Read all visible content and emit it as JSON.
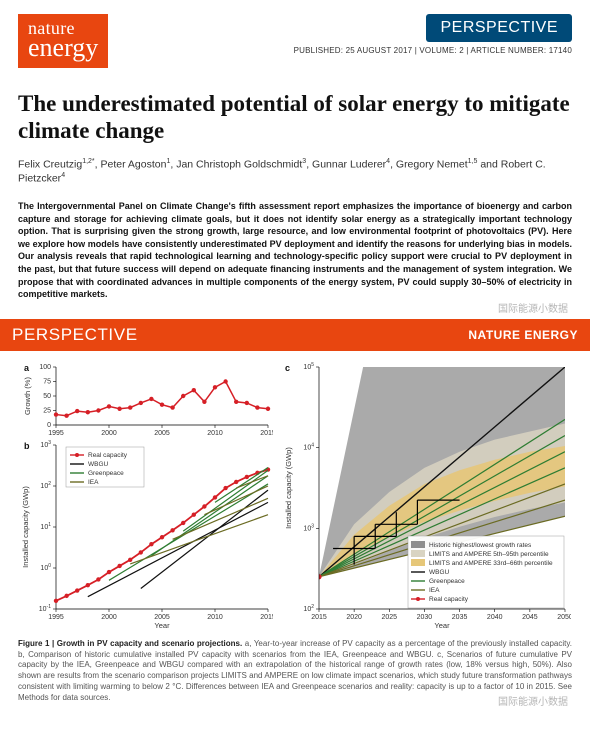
{
  "masthead": {
    "logo_line1": "nature",
    "logo_line2": "energy",
    "perspective_label": "PERSPECTIVE",
    "pubinfo": "PUBLISHED: 25 AUGUST 2017 | VOLUME: 2 | ARTICLE NUMBER: 17140"
  },
  "title": "The underestimated potential of solar energy to mitigate climate change",
  "authors_html": "Felix Creutzig<sup>1,2*</sup>, Peter Agoston<sup>1</sup>, Jan Christoph Goldschmidt<sup>3</sup>, Gunnar Luderer<sup>4</sup>, Gregory Nemet<sup>1,5</sup> and Robert C. Pietzcker<sup>4</sup>",
  "abstract": "The Intergovernmental Panel on Climate Change's fifth assessment report emphasizes the importance of bioenergy and carbon capture and storage for achieving climate goals, but it does not identify solar energy as a strategically important technology option. That is surprising given the strong growth, large resource, and low environmental footprint of photovoltaics (PV). Here we explore how models have consistently underestimated PV deployment and identify the reasons for underlying bias in models. Our analysis reveals that rapid technological learning and technology-specific policy support were crucial to PV deployment in the past, but that future success will depend on adequate financing instruments and the management of system integration. We propose that with coordinated advances in multiple components of the energy system, PV could supply 30–50% of electricity in competitive markets.",
  "band": {
    "left": "PERSPECTIVE",
    "right": "NATURE ENERGY"
  },
  "colors": {
    "brand_orange": "#e84610",
    "brand_blue": "#004a78",
    "real_red": "#d61f26",
    "wbgu_black": "#111111",
    "greenpeace": "#2e7d32",
    "iea_olive": "#6b6b23",
    "band_fill_inner": "#e6c779",
    "band_fill_outer": "#d9d4c2",
    "grey_wedge": "#8e8e8e"
  },
  "panel_a": {
    "label": "a",
    "type": "line",
    "xlabel": "",
    "ylabel": "Growth (%)",
    "xlim": [
      1995,
      2015
    ],
    "xticks": [
      1995,
      2000,
      2005,
      2010,
      2015
    ],
    "ylim": [
      0,
      100
    ],
    "yticks": [
      0,
      25,
      50,
      75,
      100
    ],
    "series": [
      {
        "name": "growth",
        "color": "#d61f26",
        "marker": "circle",
        "lw": 1.5,
        "x": [
          1995,
          1996,
          1997,
          1998,
          1999,
          2000,
          2001,
          2002,
          2003,
          2004,
          2005,
          2006,
          2007,
          2008,
          2009,
          2010,
          2011,
          2012,
          2013,
          2014,
          2015
        ],
        "y": [
          18,
          16,
          24,
          22,
          25,
          32,
          28,
          30,
          38,
          45,
          35,
          30,
          50,
          60,
          40,
          65,
          75,
          40,
          38,
          30,
          28
        ]
      }
    ]
  },
  "panel_b": {
    "label": "b",
    "type": "semilogy",
    "xlabel": "Year",
    "ylabel": "Installed capacity (GWp)",
    "xlim": [
      1995,
      2015
    ],
    "xticks": [
      1995,
      2000,
      2005,
      2010,
      2015
    ],
    "ylim_log": [
      -1,
      3
    ],
    "ytick_exp": [
      -1,
      0,
      1,
      2,
      3
    ],
    "legend": [
      {
        "name": "Real capacity",
        "color": "#d61f26",
        "marker": "circle"
      },
      {
        "name": "WBGU",
        "color": "#111111"
      },
      {
        "name": "Greenpeace",
        "color": "#2e7d32"
      },
      {
        "name": "IEA",
        "color": "#6b6b23"
      }
    ],
    "series": [
      {
        "name": "Real capacity",
        "color": "#d61f26",
        "lw": 1.8,
        "marker": "circle",
        "x": [
          1995,
          1996,
          1997,
          1998,
          1999,
          2000,
          2001,
          2002,
          2003,
          2004,
          2005,
          2006,
          2007,
          2008,
          2009,
          2010,
          2011,
          2012,
          2013,
          2014,
          2015
        ],
        "ylog": [
          -0.8,
          -0.68,
          -0.55,
          -0.42,
          -0.28,
          -0.1,
          0.05,
          0.2,
          0.38,
          0.58,
          0.75,
          0.92,
          1.1,
          1.3,
          1.5,
          1.72,
          1.95,
          2.1,
          2.22,
          2.32,
          2.4
        ]
      },
      {
        "name": "WBGU 1",
        "color": "#111111",
        "lw": 1.2,
        "x": [
          2003,
          2015
        ],
        "ylog": [
          -0.5,
          1.9
        ]
      },
      {
        "name": "WBGU 2",
        "color": "#111111",
        "lw": 1.2,
        "x": [
          1998,
          2015
        ],
        "ylog": [
          -0.7,
          1.6
        ]
      },
      {
        "name": "GP 1",
        "color": "#2e7d32",
        "lw": 1.2,
        "x": [
          2000,
          2015
        ],
        "ylog": [
          -0.3,
          2.05
        ]
      },
      {
        "name": "GP 2",
        "color": "#2e7d32",
        "lw": 1.2,
        "x": [
          2004,
          2015
        ],
        "ylog": [
          0.3,
          2.25
        ]
      },
      {
        "name": "GP 3",
        "color": "#2e7d32",
        "lw": 1.2,
        "x": [
          2007,
          2015
        ],
        "ylog": [
          0.9,
          2.38
        ]
      },
      {
        "name": "GP 4",
        "color": "#2e7d32",
        "lw": 1.2,
        "x": [
          2010,
          2015
        ],
        "ylog": [
          1.6,
          2.45
        ]
      },
      {
        "name": "IEA 1",
        "color": "#6b6b23",
        "lw": 1.2,
        "x": [
          2002,
          2015
        ],
        "ylog": [
          0.1,
          1.3
        ]
      },
      {
        "name": "IEA 2",
        "color": "#6b6b23",
        "lw": 1.2,
        "x": [
          2006,
          2015
        ],
        "ylog": [
          0.7,
          1.7
        ]
      },
      {
        "name": "IEA 3",
        "color": "#6b6b23",
        "lw": 1.2,
        "x": [
          2009,
          2015
        ],
        "ylog": [
          1.3,
          2.0
        ]
      },
      {
        "name": "IEA 4",
        "color": "#6b6b23",
        "lw": 1.2,
        "x": [
          2012,
          2015
        ],
        "ylog": [
          1.95,
          2.25
        ]
      }
    ]
  },
  "panel_c": {
    "label": "c",
    "type": "semilogy",
    "xlabel": "Year",
    "ylabel": "Installed capacity (GWp)",
    "xlim": [
      2015,
      2050
    ],
    "xticks": [
      2015,
      2020,
      2025,
      2030,
      2035,
      2040,
      2045,
      2050
    ],
    "ylim_log": [
      2,
      5
    ],
    "ytick_exp": [
      2,
      3,
      4,
      5
    ],
    "legend": [
      {
        "name": "Historic highest/lowest growth rates",
        "swatch": "#8e8e8e"
      },
      {
        "name": "LIMITS and AMPERE 5th–95th percentile",
        "swatch": "#d9d4c2"
      },
      {
        "name": "LIMITS and AMPERE 33rd–66th percentile",
        "swatch": "#e6c779"
      },
      {
        "name": "WBGU",
        "color": "#111111"
      },
      {
        "name": "Greenpeace",
        "color": "#2e7d32"
      },
      {
        "name": "IEA",
        "color": "#6b6b23"
      },
      {
        "name": "Real capacity",
        "color": "#d61f26",
        "marker": "circle"
      }
    ],
    "grey_wedge": {
      "x": [
        2015,
        2022,
        2050,
        2050
      ],
      "ylog": [
        2.4,
        5.3,
        5.3,
        3.15
      ]
    },
    "band_outer": {
      "top": {
        "x": [
          2015,
          2020,
          2025,
          2030,
          2035,
          2040,
          2045,
          2050
        ],
        "ylog": [
          2.4,
          3.05,
          3.45,
          3.75,
          3.95,
          4.1,
          4.2,
          4.3
        ]
      },
      "bot": {
        "x": [
          2015,
          2020,
          2025,
          2030,
          2035,
          2040,
          2045,
          2050
        ],
        "ylog": [
          2.4,
          2.55,
          2.72,
          2.88,
          3.02,
          3.14,
          3.24,
          3.32
        ]
      }
    },
    "band_inner": {
      "top": {
        "x": [
          2015,
          2020,
          2025,
          2030,
          2035,
          2040,
          2045,
          2050
        ],
        "ylog": [
          2.4,
          2.92,
          3.28,
          3.55,
          3.72,
          3.85,
          3.95,
          4.02
        ]
      },
      "bot": {
        "x": [
          2015,
          2020,
          2025,
          2030,
          2035,
          2040,
          2045,
          2050
        ],
        "ylog": [
          2.4,
          2.68,
          2.9,
          3.08,
          3.22,
          3.34,
          3.44,
          3.52
        ]
      }
    },
    "series_lines": [
      {
        "name": "WBGU",
        "color": "#111111",
        "lw": 1.4,
        "dash": "0",
        "x": [
          2015,
          2050
        ],
        "ylog": [
          2.4,
          5.0
        ]
      },
      {
        "name": "GP a",
        "color": "#2e7d32",
        "lw": 1.2,
        "x": [
          2015,
          2050
        ],
        "ylog": [
          2.4,
          4.35
        ]
      },
      {
        "name": "GP b",
        "color": "#2e7d32",
        "lw": 1.2,
        "x": [
          2015,
          2050
        ],
        "ylog": [
          2.4,
          4.15
        ]
      },
      {
        "name": "GP c",
        "color": "#2e7d32",
        "lw": 1.2,
        "x": [
          2015,
          2050
        ],
        "ylog": [
          2.4,
          3.95
        ]
      },
      {
        "name": "GP d",
        "color": "#2e7d32",
        "lw": 1.2,
        "x": [
          2015,
          2050
        ],
        "ylog": [
          2.4,
          3.75
        ]
      },
      {
        "name": "IEA a",
        "color": "#6b6b23",
        "lw": 1.2,
        "x": [
          2015,
          2050
        ],
        "ylog": [
          2.4,
          3.55
        ]
      },
      {
        "name": "IEA b",
        "color": "#6b6b23",
        "lw": 1.2,
        "x": [
          2015,
          2050
        ],
        "ylog": [
          2.4,
          3.35
        ]
      },
      {
        "name": "IEA c",
        "color": "#6b6b23",
        "lw": 1.2,
        "x": [
          2015,
          2050
        ],
        "ylog": [
          2.4,
          3.15
        ]
      }
    ],
    "step_segments": [
      {
        "x": [
          2017,
          2023
        ],
        "ylog": [
          2.75,
          2.75
        ]
      },
      {
        "x": [
          2023,
          2023
        ],
        "ylog": [
          2.75,
          3.05
        ]
      },
      {
        "x": [
          2023,
          2029
        ],
        "ylog": [
          3.05,
          3.05
        ]
      },
      {
        "x": [
          2029,
          2029
        ],
        "ylog": [
          3.05,
          3.35
        ]
      },
      {
        "x": [
          2029,
          2035
        ],
        "ylog": [
          3.35,
          3.35
        ]
      },
      {
        "x": [
          2020,
          2020
        ],
        "ylog": [
          2.55,
          2.9
        ]
      },
      {
        "x": [
          2020,
          2026
        ],
        "ylog": [
          2.9,
          2.9
        ]
      },
      {
        "x": [
          2026,
          2026
        ],
        "ylog": [
          2.9,
          3.2
        ]
      }
    ],
    "real_point": {
      "x": 2015,
      "ylog": 2.4
    }
  },
  "caption": "Figure 1 | Growth in PV capacity and scenario projections. a, Year-to-year increase of PV capacity as a percentage of the previously installed capacity. b, Comparison of historic cumulative installed PV capacity with scenarios from the IEA, Greenpeace and WBGU. c, Scenarios of future cumulative PV capacity by the IEA, Greenpeace and WBGU compared with an extrapolation of the historical range of growth rates (low, 18% versus high, 50%). Also shown are results from the scenario comparison projects LIMITS and AMPERE on low climate impact scenarios, which study future transformation pathways consistent with limiting warming to below 2 °C. Differences between IEA and Greenpeace scenarios and reality: capacity is up to a factor of 10 in 2015. See Methods for data sources.",
  "watermarks": {
    "w1": "国际能源小数据",
    "w2": "国际能源小数据"
  }
}
